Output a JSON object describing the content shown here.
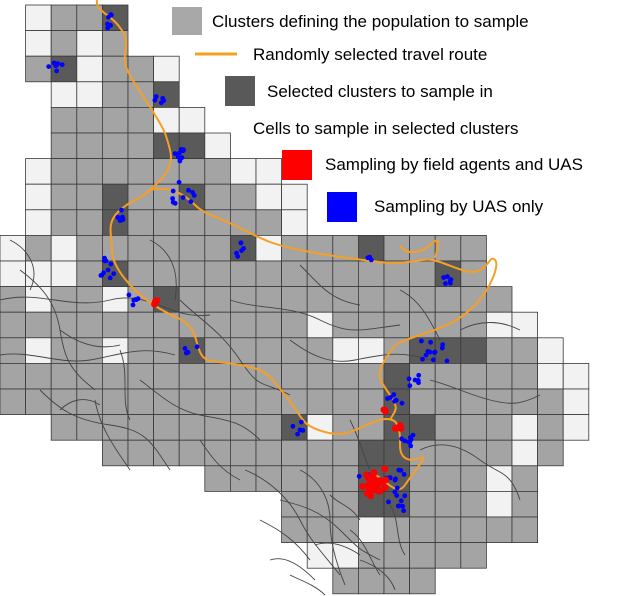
{
  "legend": {
    "items": [
      {
        "key": "population",
        "label": "Clusters defining the population to sample",
        "color": "#a8a8a8",
        "symbol": "square"
      },
      {
        "key": "route",
        "label": "Randomly selected travel route",
        "color": "#f5a623",
        "symbol": "line"
      },
      {
        "key": "selected",
        "label": "Selected clusters to sample in",
        "color": "#595959",
        "symbol": "square"
      },
      {
        "key": "cells",
        "label": "Cells to sample in selected clusters",
        "color": "#ffffff",
        "symbol": "none"
      },
      {
        "key": "field_uas",
        "label": "Sampling by field agents and UAS",
        "color": "#ff0000",
        "symbol": "square"
      },
      {
        "key": "uas_only",
        "label": "Sampling by UAS only",
        "color": "#0000ff",
        "symbol": "square"
      }
    ]
  },
  "colors": {
    "cell_gray": "#a4a4a4",
    "cell_light": "#f2f2f2",
    "cell_dark": "#5a5a5a",
    "grid_line": "#3a3a3a",
    "road": "#444444",
    "route": "#f5a025",
    "field_point": "#ff0000",
    "uas_point": "#0000ff"
  }
}
